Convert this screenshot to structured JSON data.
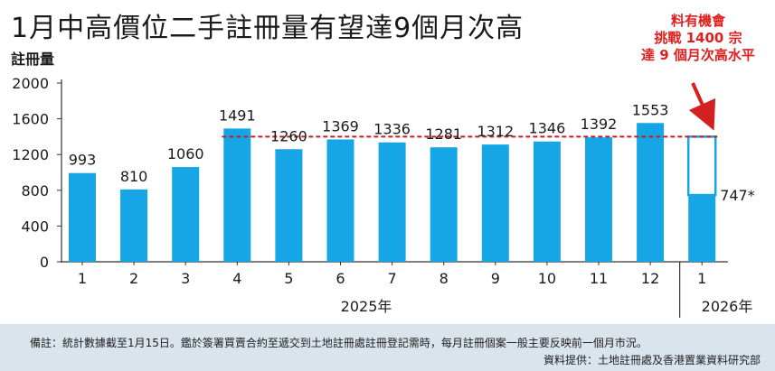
{
  "page": {
    "title": "1月中高價位二手註冊量有望達9個月次高",
    "callout_lines": [
      "料有機會",
      "挑戰 1400 宗",
      "達 9 個月次高水平"
    ],
    "note": "備註：統計數據截至1月15日。鑑於簽署買賣合約至遞交到土地註冊處註冊登記需時，每月註冊個案一般主要反映前一個月市況。",
    "source": "資料提供：土地註冊處及香港置業資料研究部"
  },
  "colors": {
    "bar": "#16a6e6",
    "reference_line": "#c0202a",
    "callout": "#e02020",
    "footer_bg": "#d9e4ec"
  },
  "chart_data": {
    "type": "bar",
    "ylabel": "註冊量",
    "ylim": [
      0,
      2000
    ],
    "yticks": [
      0,
      400,
      800,
      1200,
      1600,
      2000
    ],
    "categories": [
      "1",
      "2",
      "3",
      "4",
      "5",
      "6",
      "7",
      "8",
      "9",
      "10",
      "11",
      "12",
      "1"
    ],
    "values": [
      993,
      810,
      1060,
      1491,
      1260,
      1369,
      1336,
      1281,
      1312,
      1346,
      1392,
      1553,
      747
    ],
    "value_labels": [
      "993",
      "810",
      "1060",
      "1491",
      "1260",
      "1369",
      "1336",
      "1281",
      "1312",
      "1346",
      "1392",
      "1553",
      "747*"
    ],
    "year_groups": [
      {
        "label": "2025年",
        "categories": [
          "1",
          "2",
          "3",
          "4",
          "5",
          "6",
          "7",
          "8",
          "9",
          "10",
          "11",
          "12"
        ]
      },
      {
        "label": "2026年",
        "categories": [
          "1"
        ]
      }
    ],
    "reference_line": {
      "value": 1400,
      "style": "dashed"
    },
    "projection": {
      "category_index": 12,
      "from": 747,
      "to": 1400,
      "style": "outline"
    },
    "grid": false,
    "legend": "none"
  }
}
